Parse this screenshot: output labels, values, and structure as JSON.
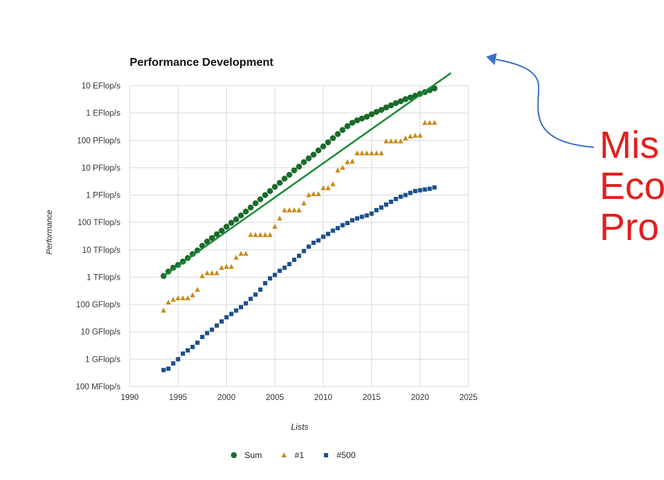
{
  "side_text": [
    "Mis",
    "Eco",
    "Pro"
  ],
  "colors": {
    "sum": "#1a6b2a",
    "first": "#c98a16",
    "last": "#1c4f8a",
    "trend": "#1a8a3a",
    "arrow": "#3a6fc4",
    "side_text": "#e0201f"
  },
  "chart_data": {
    "type": "scatter",
    "title": "Performance Development",
    "xlabel": "Lists",
    "ylabel": "Performance",
    "xlim": [
      1990,
      2025
    ],
    "y_scale": "log10",
    "ylim_flops": [
      100000000.0,
      1e+19
    ],
    "x_ticks": [
      "1990",
      "1995",
      "2000",
      "2005",
      "2010",
      "2015",
      "2020",
      "2025"
    ],
    "y_ticks": [
      "100 MFlop/s",
      "1 GFlop/s",
      "10 GFlop/s",
      "100 GFlop/s",
      "1 TFlop/s",
      "10 TFlop/s",
      "100 TFlop/s",
      "1 PFlop/s",
      "10 PFlop/s",
      "100 PFlop/s",
      "1 EFlop/s",
      "10 EFlop/s"
    ],
    "grid": true,
    "legend": "bottom",
    "series": [
      {
        "name": "Sum",
        "marker": "circle",
        "x": [
          1993.5,
          1994,
          1994.5,
          1995,
          1995.5,
          1996,
          1996.5,
          1997,
          1997.5,
          1998,
          1998.5,
          1999,
          1999.5,
          2000,
          2000.5,
          2001,
          2001.5,
          2002,
          2002.5,
          2003,
          2003.5,
          2004,
          2004.5,
          2005,
          2005.5,
          2006,
          2006.5,
          2007,
          2007.5,
          2008,
          2008.5,
          2009,
          2009.5,
          2010,
          2010.5,
          2011,
          2011.5,
          2012,
          2012.5,
          2013,
          2013.5,
          2014,
          2014.5,
          2015,
          2015.5,
          2016,
          2016.5,
          2017,
          2017.5,
          2018,
          2018.5,
          2019,
          2019.5,
          2020,
          2020.5,
          2021,
          2021.5
        ],
        "y_flops": [
          1100000000000.0,
          1600000000000.0,
          2200000000000.0,
          2800000000000.0,
          3700000000000.0,
          5000000000000.0,
          7000000000000.0,
          9500000000000.0,
          14000000000000.0,
          20000000000000.0,
          27000000000000.0,
          37000000000000.0,
          50000000000000.0,
          70000000000000.0,
          97000000000000.0,
          130000000000000.0,
          180000000000000.0,
          250000000000000.0,
          350000000000000.0,
          500000000000000.0,
          700000000000000.0,
          1000000000000000.0,
          1400000000000000.0,
          2000000000000000.0,
          2800000000000000.0,
          4000000000000000.0,
          5500000000000000.0,
          8000000000000000.0,
          1.1e+16,
          1.6e+16,
          2.2e+16,
          3e+16,
          4.3e+16,
          6e+16,
          8.5e+16,
          1.2e+17,
          1.7e+17,
          2.4e+17,
          3.3e+17,
          4.4e+17,
          5.4e+17,
          6.3e+17,
          7.3e+17,
          9e+17,
          1.1e+18,
          1.3e+18,
          1.6e+18,
          1.9e+18,
          2.3e+18,
          2.7e+18,
          3.2e+18,
          3.7e+18,
          4.3e+18,
          5e+18,
          5.8e+18,
          6.8e+18,
          7.9e+18
        ]
      },
      {
        "name": "#1",
        "marker": "triangle",
        "x": [
          1993.5,
          1994,
          1994.5,
          1995,
          1995.5,
          1996,
          1996.5,
          1997,
          1997.5,
          1998,
          1998.5,
          1999,
          1999.5,
          2000,
          2000.5,
          2001,
          2001.5,
          2002,
          2002.5,
          2003,
          2003.5,
          2004,
          2004.5,
          2005,
          2005.5,
          2006,
          2006.5,
          2007,
          2007.5,
          2008,
          2008.5,
          2009,
          2009.5,
          2010,
          2010.5,
          2011,
          2011.5,
          2012,
          2012.5,
          2013,
          2013.5,
          2014,
          2014.5,
          2015,
          2015.5,
          2016,
          2016.5,
          2017,
          2017.5,
          2018,
          2018.5,
          2019,
          2019.5,
          2020,
          2020.5,
          2021,
          2021.5
        ],
        "y_flops": [
          60000000000.0,
          120000000000.0,
          150000000000.0,
          170000000000.0,
          170000000000.0,
          170000000000.0,
          220000000000.0,
          350000000000.0,
          1100000000000.0,
          1400000000000.0,
          1400000000000.0,
          1400000000000.0,
          2200000000000.0,
          2400000000000.0,
          2400000000000.0,
          5200000000000.0,
          7200000000000.0,
          7200000000000.0,
          35000000000000.0,
          35000000000000.0,
          35000000000000.0,
          35000000000000.0,
          35000000000000.0,
          70000000000000.0,
          140000000000000.0,
          280000000000000.0,
          280000000000000.0,
          280000000000000.0,
          280000000000000.0,
          500000000000000.0,
          1000000000000000.0,
          1100000000000000.0,
          1100000000000000.0,
          1800000000000000.0,
          1800000000000000.0,
          2500000000000000.0,
          8000000000000000.0,
          1e+16,
          1.6e+16,
          1.7e+16,
          3.4e+16,
          3.4e+16,
          3.4e+16,
          3.4e+16,
          3.4e+16,
          3.4e+16,
          9.3e+16,
          9.3e+16,
          9.3e+16,
          9.3e+16,
          1.2e+17,
          1.4e+17,
          1.5e+17,
          1.5e+17,
          4.4e+17,
          4.4e+17,
          4.4e+17
        ]
      },
      {
        "name": "#500",
        "marker": "square",
        "x": [
          1993.5,
          1994,
          1994.5,
          1995,
          1995.5,
          1996,
          1996.5,
          1997,
          1997.5,
          1998,
          1998.5,
          1999,
          1999.5,
          2000,
          2000.5,
          2001,
          2001.5,
          2002,
          2002.5,
          2003,
          2003.5,
          2004,
          2004.5,
          2005,
          2005.5,
          2006,
          2006.5,
          2007,
          2007.5,
          2008,
          2008.5,
          2009,
          2009.5,
          2010,
          2010.5,
          2011,
          2011.5,
          2012,
          2012.5,
          2013,
          2013.5,
          2014,
          2014.5,
          2015,
          2015.5,
          2016,
          2016.5,
          2017,
          2017.5,
          2018,
          2018.5,
          2019,
          2019.5,
          2020,
          2020.5,
          2021,
          2021.5
        ],
        "y_flops": [
          400000000.0,
          450000000.0,
          700000000.0,
          1000000000.0,
          1600000000.0,
          2100000000.0,
          2800000000.0,
          4000000000.0,
          6500000000.0,
          9000000000.0,
          12000000000.0,
          17000000000.0,
          24000000000.0,
          34000000000.0,
          45000000000.0,
          60000000000.0,
          80000000000.0,
          110000000000.0,
          160000000000.0,
          230000000000.0,
          350000000000.0,
          600000000000.0,
          900000000000.0,
          1200000000000.0,
          1700000000000.0,
          2200000000000.0,
          3000000000000.0,
          4300000000000.0,
          6000000000000.0,
          9000000000000.0,
          13000000000000.0,
          18000000000000.0,
          22000000000000.0,
          30000000000000.0,
          38000000000000.0,
          50000000000000.0,
          62000000000000.0,
          79000000000000.0,
          95000000000000.0,
          120000000000000.0,
          140000000000000.0,
          160000000000000.0,
          180000000000000.0,
          210000000000000.0,
          280000000000000.0,
          350000000000000.0,
          450000000000000.0,
          570000000000000.0,
          720000000000000.0,
          870000000000000.0,
          1000000000000000.0,
          1200000000000000.0,
          1400000000000000.0,
          1500000000000000.0,
          1600000000000000.0,
          1700000000000000.0,
          1900000000000000.0
        ]
      }
    ],
    "trend_line": {
      "x": [
        1993.5,
        2023.2
      ],
      "y_flops": [
        1100000000000.0,
        2.9e+19
      ]
    }
  }
}
